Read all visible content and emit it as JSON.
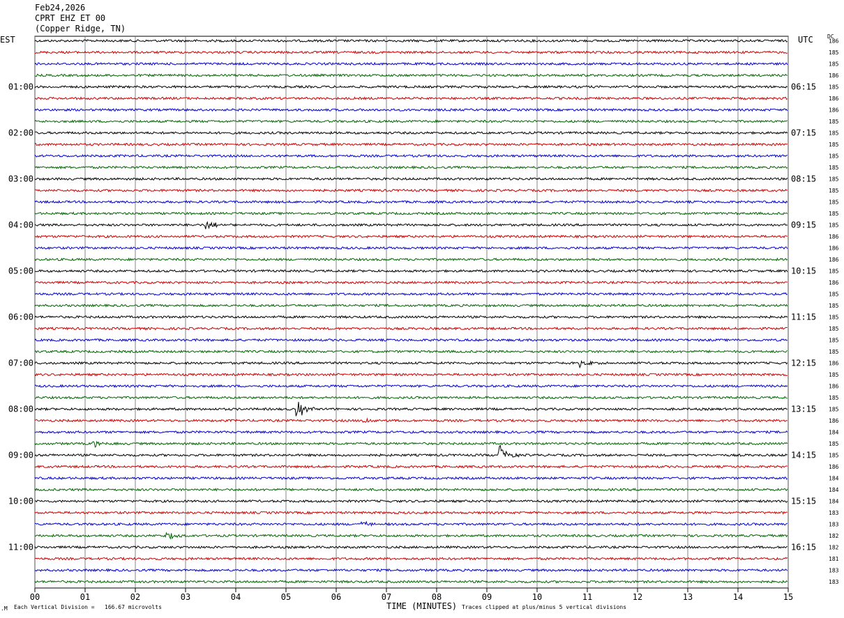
{
  "header": {
    "date": "Feb24,2026",
    "station": "CPRT EHZ ET 00",
    "location": "(Copper Ridge, TN)"
  },
  "left_zone_label": "EST",
  "right_zone_label": "UTC",
  "dc_label": "DC",
  "footer": {
    "scale_prefix": "Each Vertical Division =",
    "scale_value": "166.67 microvolts",
    "clip_note": "Traces clipped at plus/minus 5 vertical divisions",
    "x_title": "TIME (MINUTES)"
  },
  "chart_data": {
    "type": "line",
    "title": "CPRT EHZ ET 00 (Copper Ridge, TN)",
    "xlabel": "TIME (MINUTES)",
    "xlim": [
      0,
      15
    ],
    "x_ticks": [
      "00",
      "01",
      "02",
      "03",
      "04",
      "05",
      "06",
      "07",
      "08",
      "09",
      "10",
      "11",
      "12",
      "13",
      "14",
      "15"
    ],
    "trace_colors": [
      "#000000",
      "#cc0000",
      "#0000cc",
      "#006600"
    ],
    "est_hour_labels": [
      "01:00",
      "02:00",
      "03:00",
      "04:00",
      "05:00",
      "06:00",
      "07:00",
      "08:00",
      "09:00",
      "10:00",
      "11:00"
    ],
    "utc_hour_labels": [
      "06:15",
      "07:15",
      "08:15",
      "09:15",
      "10:15",
      "11:15",
      "12:15",
      "13:15",
      "14:15",
      "15:15",
      "16:15"
    ],
    "dc_offsets": [
      186,
      185,
      185,
      186,
      185,
      186,
      186,
      185,
      185,
      185,
      185,
      185,
      185,
      185,
      185,
      185,
      185,
      186,
      186,
      186,
      185,
      186,
      185,
      185,
      185,
      185,
      185,
      185,
      186,
      185,
      186,
      185,
      185,
      186,
      184,
      185,
      185,
      186,
      184,
      184,
      184,
      183,
      183,
      182,
      182,
      181,
      183,
      183
    ],
    "events": [
      {
        "trace": 16,
        "minute": 3.45,
        "amplitude": 7
      },
      {
        "trace": 28,
        "minute": 10.9,
        "amplitude": 5
      },
      {
        "trace": 32,
        "minute": 5.25,
        "amplitude": 12
      },
      {
        "trace": 33,
        "minute": 6.55,
        "amplitude": 5
      },
      {
        "trace": 35,
        "minute": 1.2,
        "amplitude": 4
      },
      {
        "trace": 36,
        "minute": 9.28,
        "amplitude": 14
      },
      {
        "trace": 42,
        "minute": 6.55,
        "amplitude": 4
      },
      {
        "trace": 43,
        "minute": 2.65,
        "amplitude": 5
      }
    ]
  }
}
